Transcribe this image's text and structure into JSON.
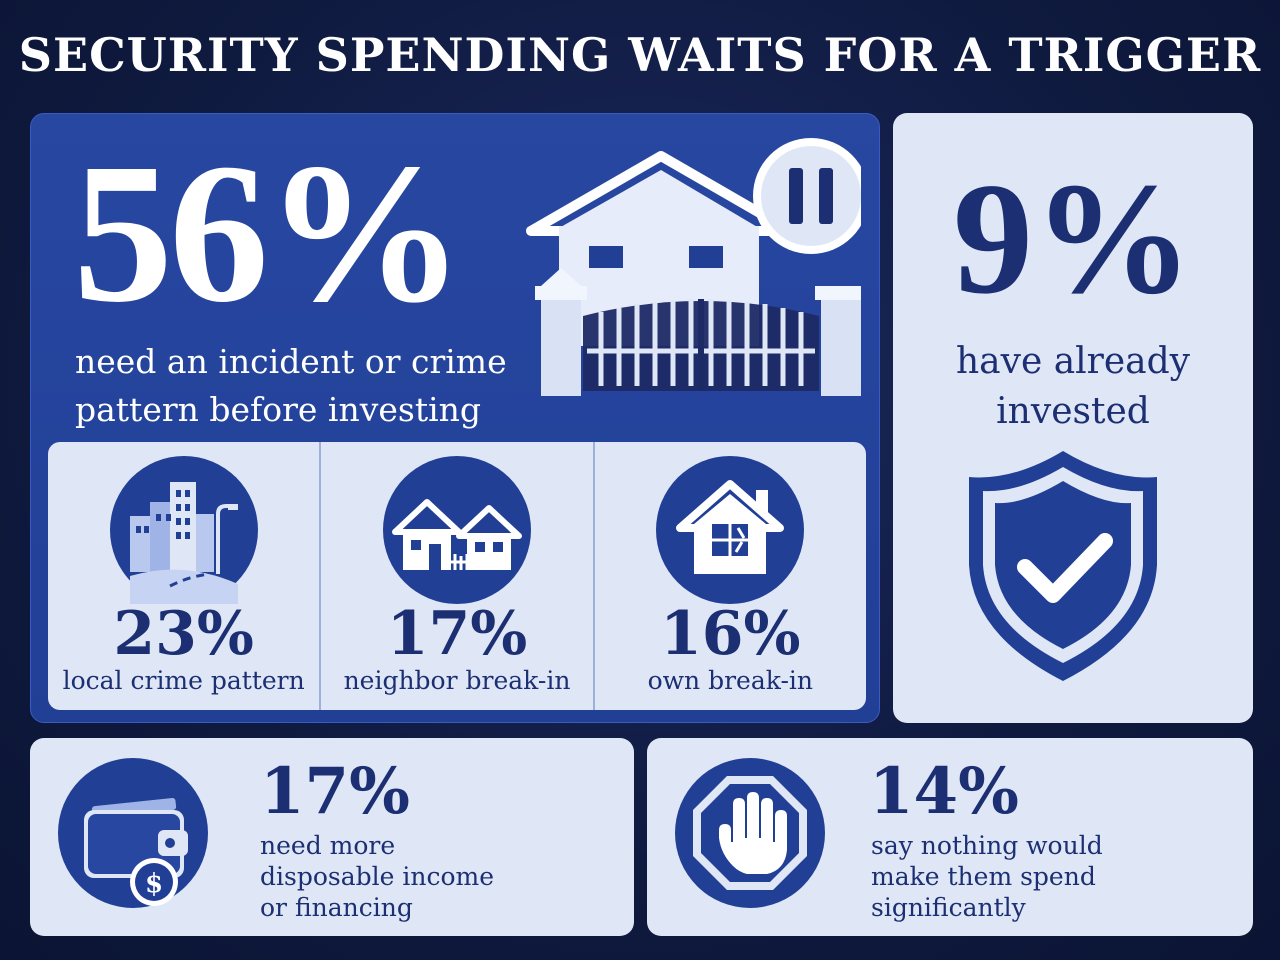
{
  "title": "SECURITY SPENDING WAITS FOR A TRIGGER",
  "main": {
    "stat": "56%",
    "caption": "need an incident or crime pattern before investing",
    "illustration_icon": "house-with-gate-pause-icon"
  },
  "breakdown": [
    {
      "stat": "23%",
      "label": "local crime pattern",
      "icon": "city-street-icon"
    },
    {
      "stat": "17%",
      "label": "neighbor break-in",
      "icon": "neighbor-houses-icon"
    },
    {
      "stat": "16%",
      "label": "own break-in",
      "icon": "broken-window-house-icon"
    }
  ],
  "invested": {
    "stat": "9%",
    "caption": "have already invested",
    "icon": "shield-check-icon"
  },
  "income": {
    "stat": "17%",
    "text": "need more\ndisposable income\nor financing",
    "icon": "wallet-dollar-icon"
  },
  "nothing": {
    "stat": "14%",
    "text": "say nothing would\nmake them spend\nsignificantly",
    "icon": "stop-hand-icon"
  },
  "colors": {
    "background": "#0f1a3f",
    "primary_blue": "#233f96",
    "navy_text": "#1c2f73",
    "light_card": "#dfe7f7"
  }
}
